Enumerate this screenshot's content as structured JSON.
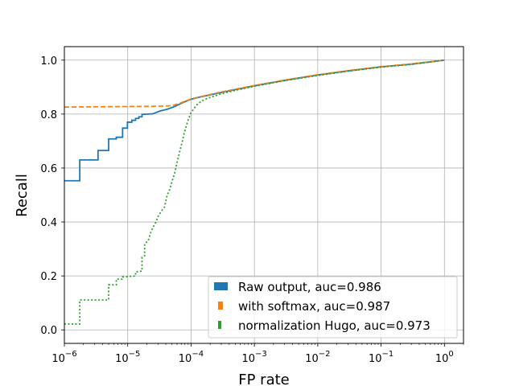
{
  "chart_data": {
    "type": "line",
    "title": "",
    "xlabel": "FP rate",
    "ylabel": "Recall",
    "xscale": "log",
    "xlim": [
      1e-06,
      2
    ],
    "ylim": [
      -0.05,
      1.05
    ],
    "grid": true,
    "legend_position": "lower-right",
    "x_ticks": [
      {
        "value": 1e-06,
        "base": "10",
        "exp": "−6"
      },
      {
        "value": 1e-05,
        "base": "10",
        "exp": "−5"
      },
      {
        "value": 0.0001,
        "base": "10",
        "exp": "−4"
      },
      {
        "value": 0.001,
        "base": "10",
        "exp": "−3"
      },
      {
        "value": 0.01,
        "base": "10",
        "exp": "−2"
      },
      {
        "value": 0.1,
        "base": "10",
        "exp": "−1"
      },
      {
        "value": 1,
        "base": "10",
        "exp": "0"
      }
    ],
    "y_ticks": [
      {
        "value": 0.0,
        "label": "0.0"
      },
      {
        "value": 0.2,
        "label": "0.2"
      },
      {
        "value": 0.4,
        "label": "0.4"
      },
      {
        "value": 0.6,
        "label": "0.6"
      },
      {
        "value": 0.8,
        "label": "0.8"
      },
      {
        "value": 1.0,
        "label": "1.0"
      }
    ],
    "series": [
      {
        "name": "Raw output, auc=0.986",
        "color": "#1f77b4",
        "style": "solid",
        "points": [
          [
            1e-06,
            0.553
          ],
          [
            1.75e-06,
            0.553
          ],
          [
            1.75e-06,
            0.63
          ],
          [
            3.4e-06,
            0.63
          ],
          [
            3.4e-06,
            0.665
          ],
          [
            5e-06,
            0.665
          ],
          [
            5e-06,
            0.708
          ],
          [
            6.6e-06,
            0.708
          ],
          [
            6.6e-06,
            0.714
          ],
          [
            8.3e-06,
            0.714
          ],
          [
            8.3e-06,
            0.748
          ],
          [
            9.9e-06,
            0.748
          ],
          [
            9.9e-06,
            0.77
          ],
          [
            1.16e-05,
            0.77
          ],
          [
            1.16e-05,
            0.777
          ],
          [
            1.33e-05,
            0.777
          ],
          [
            1.33e-05,
            0.784
          ],
          [
            1.5e-05,
            0.784
          ],
          [
            1.5e-05,
            0.79
          ],
          [
            1.68e-05,
            0.79
          ],
          [
            1.68e-05,
            0.799
          ],
          [
            2.5e-05,
            0.801
          ],
          [
            3.2e-05,
            0.811
          ],
          [
            4.2e-05,
            0.818
          ],
          [
            5.5e-05,
            0.828
          ],
          [
            7.5e-05,
            0.843
          ],
          [
            0.0001,
            0.855
          ],
          [
            0.00015,
            0.865
          ],
          [
            0.0003,
            0.88
          ],
          [
            0.001,
            0.905
          ],
          [
            0.003,
            0.925
          ],
          [
            0.01,
            0.945
          ],
          [
            0.03,
            0.96
          ],
          [
            0.1,
            0.975
          ],
          [
            0.3,
            0.985
          ],
          [
            1,
            1.0
          ]
        ]
      },
      {
        "name": "with softmax, auc=0.987",
        "color": "#ff7f0e",
        "style": "dashed",
        "points": [
          [
            1e-06,
            0.826
          ],
          [
            1e-05,
            0.828
          ],
          [
            3e-05,
            0.829
          ],
          [
            5e-05,
            0.831
          ],
          [
            7e-05,
            0.842
          ],
          [
            0.0001,
            0.856
          ],
          [
            0.00015,
            0.866
          ],
          [
            0.0003,
            0.882
          ],
          [
            0.001,
            0.906
          ],
          [
            0.003,
            0.926
          ],
          [
            0.01,
            0.946
          ],
          [
            0.03,
            0.961
          ],
          [
            0.1,
            0.976
          ],
          [
            0.3,
            0.986
          ],
          [
            1,
            1.0
          ]
        ]
      },
      {
        "name": "normalization Hugo, auc=0.973",
        "color": "#2ca02c",
        "style": "dotted",
        "points": [
          [
            1e-06,
            0.022
          ],
          [
            1.75e-06,
            0.022
          ],
          [
            1.75e-06,
            0.111
          ],
          [
            5e-06,
            0.111
          ],
          [
            5e-06,
            0.167
          ],
          [
            6.6e-06,
            0.167
          ],
          [
            6.6e-06,
            0.188
          ],
          [
            8.3e-06,
            0.188
          ],
          [
            8.3e-06,
            0.196
          ],
          [
            1.33e-05,
            0.2
          ],
          [
            1.33e-05,
            0.215
          ],
          [
            1.68e-05,
            0.218
          ],
          [
            1.68e-05,
            0.27
          ],
          [
            1.85e-05,
            0.275
          ],
          [
            1.85e-05,
            0.32
          ],
          [
            2.1e-05,
            0.33
          ],
          [
            2.3e-05,
            0.36
          ],
          [
            2.5e-05,
            0.38
          ],
          [
            2.8e-05,
            0.4
          ],
          [
            3e-05,
            0.42
          ],
          [
            3.4e-05,
            0.44
          ],
          [
            3.8e-05,
            0.455
          ],
          [
            4.2e-05,
            0.5
          ],
          [
            4.6e-05,
            0.52
          ],
          [
            5e-05,
            0.55
          ],
          [
            5.5e-05,
            0.58
          ],
          [
            6e-05,
            0.62
          ],
          [
            6.6e-05,
            0.66
          ],
          [
            7.3e-05,
            0.7
          ],
          [
            7.8e-05,
            0.73
          ],
          [
            8.5e-05,
            0.76
          ],
          [
            9.2e-05,
            0.785
          ],
          [
            0.0001,
            0.805
          ],
          [
            0.000115,
            0.825
          ],
          [
            0.00013,
            0.84
          ],
          [
            0.00016,
            0.853
          ],
          [
            0.0002,
            0.862
          ],
          [
            0.0003,
            0.875
          ],
          [
            0.0005,
            0.888
          ],
          [
            0.001,
            0.903
          ],
          [
            0.003,
            0.924
          ],
          [
            0.01,
            0.943
          ],
          [
            0.03,
            0.959
          ],
          [
            0.1,
            0.974
          ],
          [
            0.3,
            0.984
          ],
          [
            1,
            1.0
          ]
        ]
      }
    ]
  }
}
